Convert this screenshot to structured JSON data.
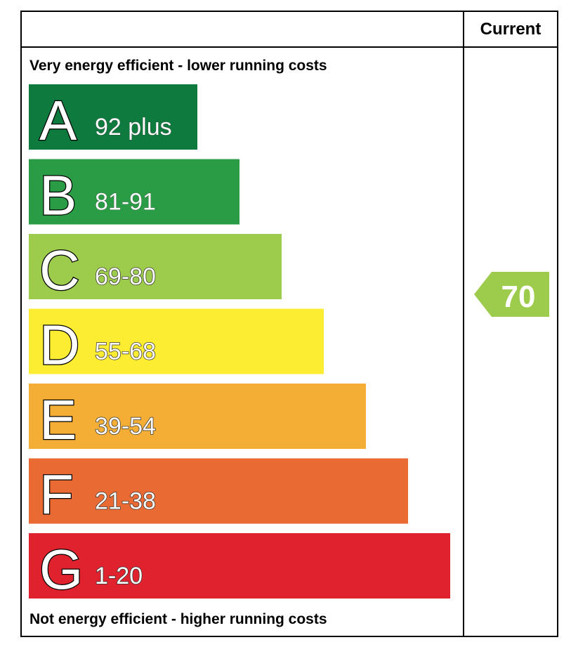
{
  "header": {
    "column": "Current"
  },
  "top_label": "Very energy efficient - lower running costs",
  "bottom_label": "Not energy efficient - higher running costs",
  "bands": [
    {
      "letter": "A",
      "range": "92 plus",
      "color": "#0f7a3e"
    },
    {
      "letter": "B",
      "range": "81-91",
      "color": "#2a9c46"
    },
    {
      "letter": "C",
      "range": "69-80",
      "color": "#9dcb4c"
    },
    {
      "letter": "D",
      "range": "55-68",
      "color": "#fded32"
    },
    {
      "letter": "E",
      "range": "39-54",
      "color": "#f4ae36"
    },
    {
      "letter": "F",
      "range": "21-38",
      "color": "#e96a32"
    },
    {
      "letter": "G",
      "range": "1-20",
      "color": "#e0222f"
    }
  ],
  "current": {
    "value": "70",
    "color": "#9dcb4c"
  }
}
